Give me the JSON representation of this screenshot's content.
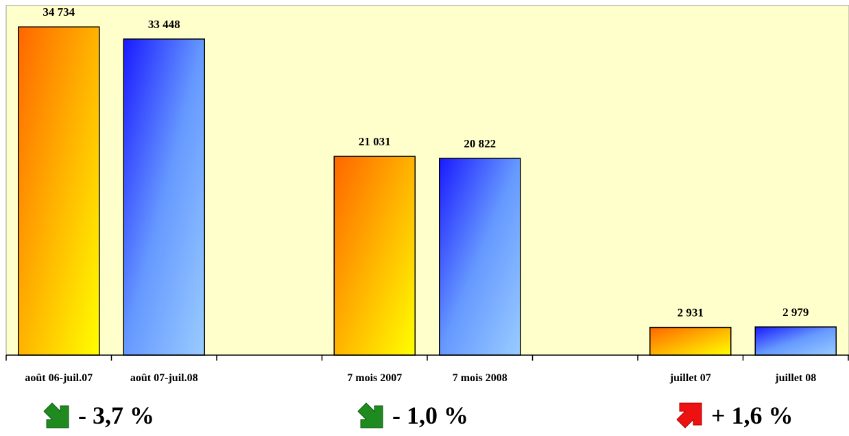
{
  "chart_data": {
    "type": "bar",
    "categories": [
      "août 06-juil.07",
      "août 07-juil.08",
      "7 mois 2007",
      "7 mois 2008",
      "juillet 07",
      "juillet 08"
    ],
    "values": [
      34734,
      33448,
      21031,
      20822,
      2931,
      2979
    ],
    "value_labels": [
      "34 734",
      "33 448",
      "21 031",
      "20 822",
      "2 931",
      "2 979"
    ],
    "groups": [
      {
        "bars": [
          0,
          1
        ]
      },
      {
        "bars": [
          2,
          3
        ]
      },
      {
        "bars": [
          4,
          5
        ]
      }
    ],
    "bar_styles": [
      "orange-yellow",
      "blue",
      "orange-yellow",
      "blue",
      "orange-yellow",
      "blue"
    ],
    "ylim": [
      0,
      37000
    ],
    "title": "",
    "xlabel": "",
    "ylabel": "",
    "grid": false
  },
  "changes": [
    {
      "label": "- 3,7 %",
      "direction": "down",
      "icon": "arrow-down-right-icon",
      "color": "#1f8a1f"
    },
    {
      "label": "- 1,0 %",
      "direction": "down",
      "icon": "arrow-down-right-icon",
      "color": "#1f8a1f"
    },
    {
      "label": "+ 1,6 %",
      "direction": "up",
      "icon": "arrow-up-right-icon",
      "color": "#ee1111"
    }
  ],
  "colors": {
    "plot_background": "#ffffcc",
    "orange_gradient": [
      "#ff6600",
      "#ffff00"
    ],
    "blue_gradient": [
      "#0000ff",
      "#99ccff"
    ]
  }
}
